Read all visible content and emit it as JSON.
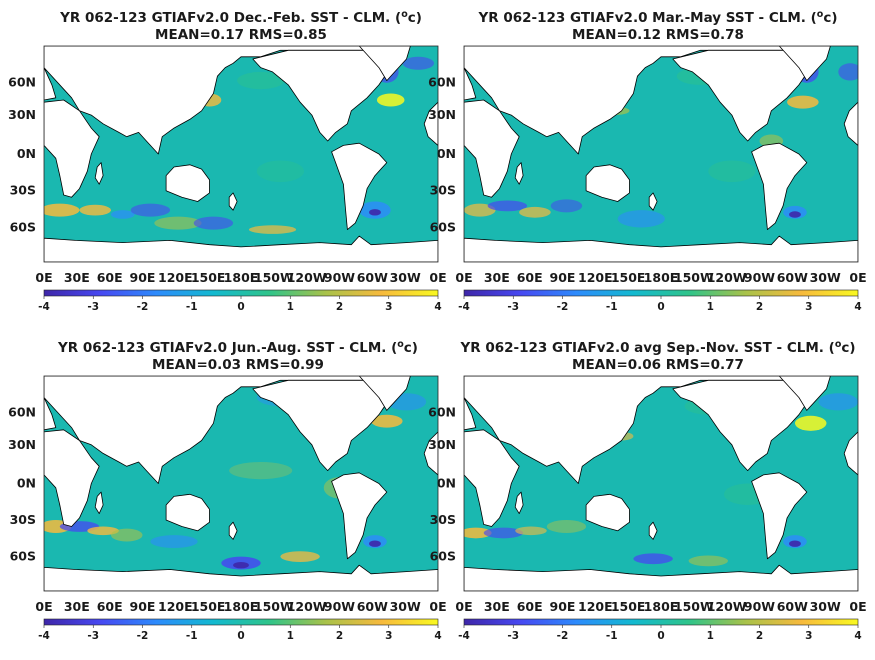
{
  "figure": {
    "colors": {
      "ocean": "#1ab8b0",
      "land": "#ffffff",
      "coast": "#000000",
      "colormap": [
        "#3e26a8",
        "#4748f1",
        "#2d8bfc",
        "#13b9d0",
        "#2fc48a",
        "#a8c24a",
        "#f7ba3d",
        "#f9f921"
      ]
    }
  },
  "chart_data": [
    {
      "type": "heatmap",
      "title": "YR 062-123 GTIAFv2.0  Dec.-Feb. SST - CLM. (",
      "title_sup": "o",
      "title_end": "c)",
      "stats": "MEAN=0.17   RMS=0.85",
      "y_ticks": [
        "60N",
        "30N",
        "0N",
        "30S",
        "60S"
      ],
      "x_ticks": [
        "0E",
        "30E",
        "60E",
        "90E",
        "120E",
        "150E",
        "180E",
        "150W",
        "120W",
        "90W",
        "60W",
        "30W",
        "0E"
      ],
      "colorbar_ticks": [
        "-4",
        "-3",
        "-2",
        "-1",
        "0",
        "1",
        "2",
        "3",
        "4"
      ],
      "clim": [
        -4,
        4
      ]
    },
    {
      "type": "heatmap",
      "title": "YR 062-123 GTIAFv2.0 Mar.-May SST - CLM. (",
      "title_sup": "o",
      "title_end": "c)",
      "stats": "MEAN=0.12   RMS=0.78",
      "y_ticks": [
        "60N",
        "30N",
        "0N",
        "30S",
        "60S"
      ],
      "x_ticks": [
        "0E",
        "30E",
        "60E",
        "90E",
        "120E",
        "150E",
        "180E",
        "150W",
        "120W",
        "90W",
        "60W",
        "30W",
        "0E"
      ],
      "colorbar_ticks": [
        "-4",
        "-3",
        "-2",
        "-1",
        "0",
        "1",
        "2",
        "3",
        "4"
      ],
      "clim": [
        -4,
        4
      ]
    },
    {
      "type": "heatmap",
      "title": "YR 062-123 GTIAFv2.0 Jun.-Aug. SST - CLM. (",
      "title_sup": "o",
      "title_end": "c)",
      "stats": "MEAN=0.03   RMS=0.99",
      "y_ticks": [
        "60N",
        "30N",
        "0N",
        "30S",
        "60S"
      ],
      "x_ticks": [
        "0E",
        "30E",
        "60E",
        "90E",
        "120E",
        "150E",
        "180E",
        "150W",
        "120W",
        "90W",
        "60W",
        "30W",
        "0E"
      ],
      "colorbar_ticks": [
        "-4",
        "-3",
        "-2",
        "-1",
        "0",
        "1",
        "2",
        "3",
        "4"
      ],
      "clim": [
        -4,
        4
      ]
    },
    {
      "type": "heatmap",
      "title": "YR 062-123 GTIAFv2.0 avg Sep.-Nov. SST - CLM. (",
      "title_sup": "o",
      "title_end": "c)",
      "stats": "MEAN=0.06   RMS=0.77",
      "y_ticks": [
        "60N",
        "30N",
        "0N",
        "30S",
        "60S"
      ],
      "x_ticks": [
        "0E",
        "30E",
        "60E",
        "90E",
        "120E",
        "150E",
        "180E",
        "150W",
        "120W",
        "90W",
        "60W",
        "30W",
        "0E"
      ],
      "colorbar_ticks": [
        "-4",
        "-3",
        "-2",
        "-1",
        "0",
        "1",
        "2",
        "3",
        "4"
      ],
      "clim": [
        -4,
        4
      ]
    }
  ]
}
